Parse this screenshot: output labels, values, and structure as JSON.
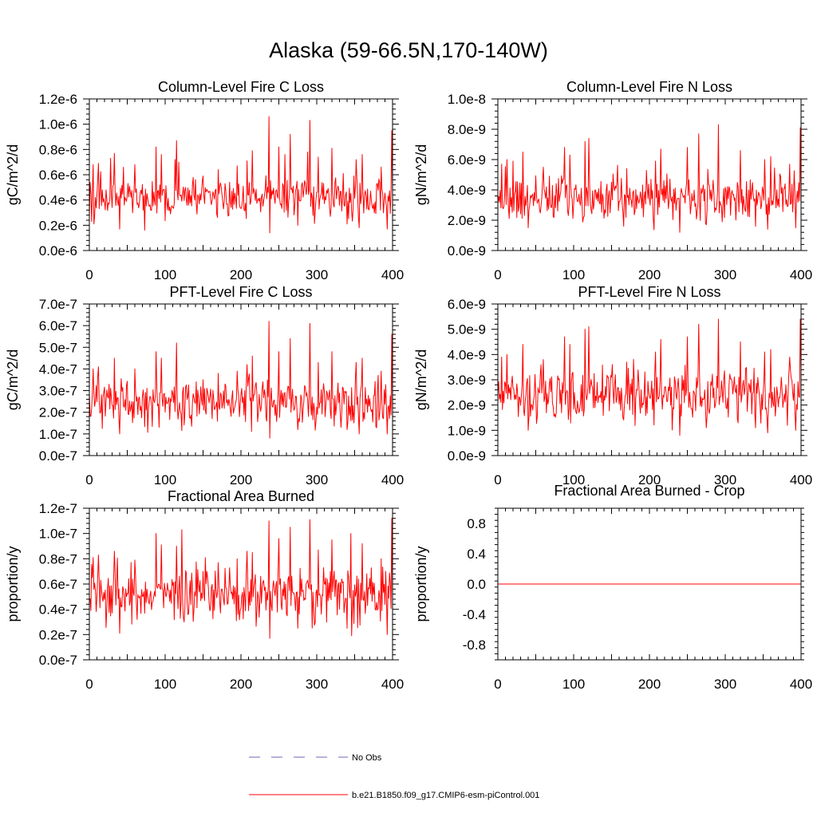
{
  "figure": {
    "title": "Alaska (59-66.5N,170-140W)",
    "colors": {
      "model": "#ff0000",
      "obs": "#6a6ab4",
      "axis": "#000000"
    }
  },
  "legend": {
    "entries": [
      {
        "label": "No Obs",
        "style": "dashed",
        "color": "#6a6ab4"
      },
      {
        "label": "b.e21.B1850.f09_g17.CMIP6-esm-piControl.001",
        "style": "solid",
        "color": "#ff0000"
      }
    ]
  },
  "chart_data": [
    {
      "type": "line",
      "title": "Column-Level Fire C Loss",
      "ylabel": "gC/m^2/d",
      "xlim": [
        0,
        400
      ],
      "ylim": [
        0,
        1.2e-06
      ],
      "xticks": [
        0,
        100,
        200,
        300,
        400
      ],
      "yticks": [
        0,
        2e-07,
        4e-07,
        6e-07,
        8e-07,
        1e-06,
        1.2e-06
      ],
      "ytick_labels": [
        "0.0e-6",
        "0.2e-6",
        "0.4e-6",
        "0.6e-6",
        "0.8e-6",
        "1.0e-6",
        "1.2e-6"
      ],
      "series": [
        {
          "n_points": 401,
          "mean": 4.2e-07,
          "spread": 1.05e-07,
          "min": 1.4e-07,
          "peaks": [
            [
              5,
              6.8e-07
            ],
            [
              12,
              6.9e-07
            ],
            [
              28,
              7.3e-07
            ],
            [
              33,
              7.7e-07
            ],
            [
              45,
              6.6e-07
            ],
            [
              60,
              6.8e-07
            ],
            [
              88,
              8.2e-07
            ],
            [
              95,
              7.6e-07
            ],
            [
              113,
              7.2e-07
            ],
            [
              115,
              8.7e-07
            ],
            [
              118,
              7e-07
            ],
            [
              150,
              5.9e-07
            ],
            [
              170,
              6.4e-07
            ],
            [
              195,
              6.7e-07
            ],
            [
              208,
              7.1e-07
            ],
            [
              215,
              7.9e-07
            ],
            [
              237,
              1.06e-06
            ],
            [
              250,
              8.2e-07
            ],
            [
              258,
              7.6e-07
            ],
            [
              265,
              9.2e-07
            ],
            [
              275,
              7.7e-07
            ],
            [
              288,
              7.8e-07
            ],
            [
              291,
              1.03e-06
            ],
            [
              302,
              7.4e-07
            ],
            [
              320,
              8.1e-07
            ],
            [
              335,
              6.1e-07
            ],
            [
              352,
              7.2e-07
            ],
            [
              360,
              7.6e-07
            ],
            [
              385,
              6.6e-07
            ],
            [
              399,
              9.5e-07
            ]
          ],
          "troughs": [
            [
              3,
              2.3e-07
            ],
            [
              40,
              1.7e-07
            ],
            [
              238,
              1.4e-07
            ],
            [
              275,
              2e-07
            ],
            [
              340,
              2.1e-07
            ],
            [
              356,
              1.8e-07
            ],
            [
              393,
              1.7e-07
            ]
          ]
        }
      ]
    },
    {
      "type": "line",
      "title": "Column-Level Fire N Loss",
      "ylabel": "gN/m^2/d",
      "xlim": [
        0,
        400
      ],
      "ylim": [
        0,
        1e-08
      ],
      "xticks": [
        0,
        100,
        200,
        300,
        400
      ],
      "yticks": [
        0,
        2e-09,
        4e-09,
        6e-09,
        8e-09,
        1e-08
      ],
      "ytick_labels": [
        "0.0e-9",
        "2.0e-9",
        "4.0e-9",
        "6.0e-9",
        "8.0e-9",
        "1.0e-8"
      ],
      "series": [
        {
          "n_points": 401,
          "mean": 3.5e-09,
          "spread": 9e-10,
          "min": 1.2e-09,
          "peaks": [
            [
              5,
              5.7e-09
            ],
            [
              12,
              6e-09
            ],
            [
              20,
              5.9e-09
            ],
            [
              33,
              6.5e-09
            ],
            [
              60,
              5.5e-09
            ],
            [
              88,
              6.8e-09
            ],
            [
              95,
              6.3e-09
            ],
            [
              115,
              7.2e-09
            ],
            [
              120,
              7.4e-09
            ],
            [
              150,
              4.5e-09
            ],
            [
              170,
              5.4e-09
            ],
            [
              208,
              5.9e-09
            ],
            [
              215,
              6.7e-09
            ],
            [
              240,
              8.5e-09
            ],
            [
              250,
              6.8e-09
            ],
            [
              265,
              7.7e-09
            ],
            [
              275,
              6.3e-09
            ],
            [
              291,
              8.3e-09
            ],
            [
              320,
              6.6e-09
            ],
            [
              352,
              6e-09
            ],
            [
              360,
              6.2e-09
            ],
            [
              385,
              5.7e-09
            ],
            [
              399,
              8.1e-09
            ]
          ],
          "troughs": [
            [
              40,
              1.5e-09
            ],
            [
              240,
              1.2e-09
            ],
            [
              275,
              1.7e-09
            ],
            [
              340,
              1.6e-09
            ],
            [
              356,
              1.4e-09
            ],
            [
              393,
              1.5e-09
            ]
          ]
        }
      ]
    },
    {
      "type": "line",
      "title": "PFT-Level Fire C Loss",
      "ylabel": "gC/m^2/d",
      "xlim": [
        0,
        400
      ],
      "ylim": [
        0,
        7e-07
      ],
      "xticks": [
        0,
        100,
        200,
        300,
        400
      ],
      "yticks": [
        0,
        1e-07,
        2e-07,
        3e-07,
        4e-07,
        5e-07,
        6e-07,
        7e-07
      ],
      "ytick_labels": [
        "0.0e-7",
        "1.0e-7",
        "2.0e-7",
        "3.0e-7",
        "4.0e-7",
        "5.0e-7",
        "6.0e-7",
        "7.0e-7"
      ],
      "series": [
        {
          "n_points": 401,
          "mean": 2.45e-07,
          "spread": 6.2e-08,
          "min": 8e-08,
          "peaks": [
            [
              5,
              4e-07
            ],
            [
              12,
              4.1e-07
            ],
            [
              33,
              4.5e-07
            ],
            [
              60,
              4e-07
            ],
            [
              88,
              4.8e-07
            ],
            [
              95,
              4.5e-07
            ],
            [
              115,
              5.2e-07
            ],
            [
              150,
              3.5e-07
            ],
            [
              170,
              3.8e-07
            ],
            [
              195,
              3.9e-07
            ],
            [
              208,
              4.2e-07
            ],
            [
              215,
              4.6e-07
            ],
            [
              237,
              6.2e-07
            ],
            [
              250,
              4.8e-07
            ],
            [
              265,
              5.4e-07
            ],
            [
              291,
              6.1e-07
            ],
            [
              302,
              4.3e-07
            ],
            [
              320,
              4.8e-07
            ],
            [
              352,
              4.3e-07
            ],
            [
              360,
              4.5e-07
            ],
            [
              385,
              3.9e-07
            ],
            [
              399,
              5.6e-07
            ]
          ],
          "troughs": [
            [
              40,
              1e-07
            ],
            [
              238,
              8e-08
            ],
            [
              275,
              1.2e-07
            ],
            [
              340,
              1.2e-07
            ],
            [
              356,
              1e-07
            ],
            [
              393,
              1e-07
            ]
          ]
        }
      ]
    },
    {
      "type": "line",
      "title": "PFT-Level Fire N Loss",
      "ylabel": "gN/m^2/d",
      "xlim": [
        0,
        400
      ],
      "ylim": [
        0,
        6e-09
      ],
      "xticks": [
        0,
        100,
        200,
        300,
        400
      ],
      "yticks": [
        0,
        1e-09,
        2e-09,
        3e-09,
        4e-09,
        5e-09,
        6e-09
      ],
      "ytick_labels": [
        "0.0e-9",
        "1.0e-9",
        "2.0e-9",
        "3.0e-9",
        "4.0e-9",
        "5.0e-9",
        "6.0e-9"
      ],
      "series": [
        {
          "n_points": 401,
          "mean": 2.4e-09,
          "spread": 6.2e-10,
          "min": 8e-10,
          "peaks": [
            [
              5,
              3.9e-09
            ],
            [
              12,
              4e-09
            ],
            [
              33,
              4.4e-09
            ],
            [
              60,
              3.8e-09
            ],
            [
              88,
              4.7e-09
            ],
            [
              95,
              4.4e-09
            ],
            [
              115,
              5e-09
            ],
            [
              120,
              5.1e-09
            ],
            [
              150,
              3.1e-09
            ],
            [
              170,
              3.7e-09
            ],
            [
              208,
              4.1e-09
            ],
            [
              215,
              4.6e-09
            ],
            [
              240,
              5.5e-09
            ],
            [
              250,
              4.7e-09
            ],
            [
              265,
              5.2e-09
            ],
            [
              291,
              5.4e-09
            ],
            [
              320,
              4.5e-09
            ],
            [
              352,
              4.1e-09
            ],
            [
              360,
              4.2e-09
            ],
            [
              385,
              3.9e-09
            ],
            [
              399,
              5.4e-09
            ]
          ],
          "troughs": [
            [
              40,
              1e-09
            ],
            [
              240,
              8e-10
            ],
            [
              275,
              1.1e-09
            ],
            [
              340,
              1.1e-09
            ],
            [
              356,
              9e-10
            ],
            [
              393,
              1e-09
            ]
          ]
        }
      ]
    },
    {
      "type": "line",
      "title": "Fractional Area Burned",
      "ylabel": "proportion/y",
      "xlim": [
        0,
        400
      ],
      "ylim": [
        0,
        1.2e-07
      ],
      "xticks": [
        0,
        100,
        200,
        300,
        400
      ],
      "yticks": [
        0,
        2e-08,
        4e-08,
        6e-08,
        8e-08,
        1e-07,
        1.2e-07
      ],
      "ytick_labels": [
        "0.0e-7",
        "0.2e-7",
        "0.4e-7",
        "0.6e-7",
        "0.8e-7",
        "1.0e-7",
        "1.2e-7"
      ],
      "series": [
        {
          "n_points": 401,
          "mean": 5.1e-08,
          "spread": 1.25e-08,
          "min": 1.7e-08,
          "peaks": [
            [
              5,
              8.1e-08
            ],
            [
              12,
              8.3e-08
            ],
            [
              33,
              8.6e-08
            ],
            [
              60,
              7.9e-08
            ],
            [
              88,
              1e-07
            ],
            [
              95,
              9.1e-08
            ],
            [
              115,
              9e-08
            ],
            [
              122,
              1.03e-07
            ],
            [
              150,
              7e-08
            ],
            [
              170,
              7.7e-08
            ],
            [
              195,
              8e-08
            ],
            [
              208,
              8.6e-08
            ],
            [
              215,
              8.5e-08
            ],
            [
              237,
              1.1e-07
            ],
            [
              250,
              9.6e-08
            ],
            [
              265,
              1.05e-07
            ],
            [
              291,
              1.11e-07
            ],
            [
              302,
              8.7e-08
            ],
            [
              320,
              9.5e-08
            ],
            [
              345,
              1e-07
            ],
            [
              360,
              9.2e-08
            ],
            [
              385,
              8e-08
            ],
            [
              399,
              1.12e-07
            ]
          ],
          "troughs": [
            [
              40,
              2.1e-08
            ],
            [
              238,
              1.7e-08
            ],
            [
              275,
              2.5e-08
            ],
            [
              340,
              2.5e-08
            ],
            [
              346,
              1.9e-08
            ],
            [
              393,
              2e-08
            ]
          ]
        }
      ]
    },
    {
      "type": "line",
      "title": "Fractional Area Burned - Crop",
      "ylabel": "proportion/y",
      "xlim": [
        0,
        400
      ],
      "ylim": [
        -1,
        1
      ],
      "xticks": [
        0,
        100,
        200,
        300,
        400
      ],
      "yticks": [
        -0.8,
        -0.4,
        0,
        0.4,
        0.8
      ],
      "ytick_labels": [
        "-0.8",
        "-0.4",
        "0.0",
        "0.4",
        "0.8"
      ],
      "series": [
        {
          "n_points": 401,
          "constant": 0
        }
      ]
    }
  ]
}
